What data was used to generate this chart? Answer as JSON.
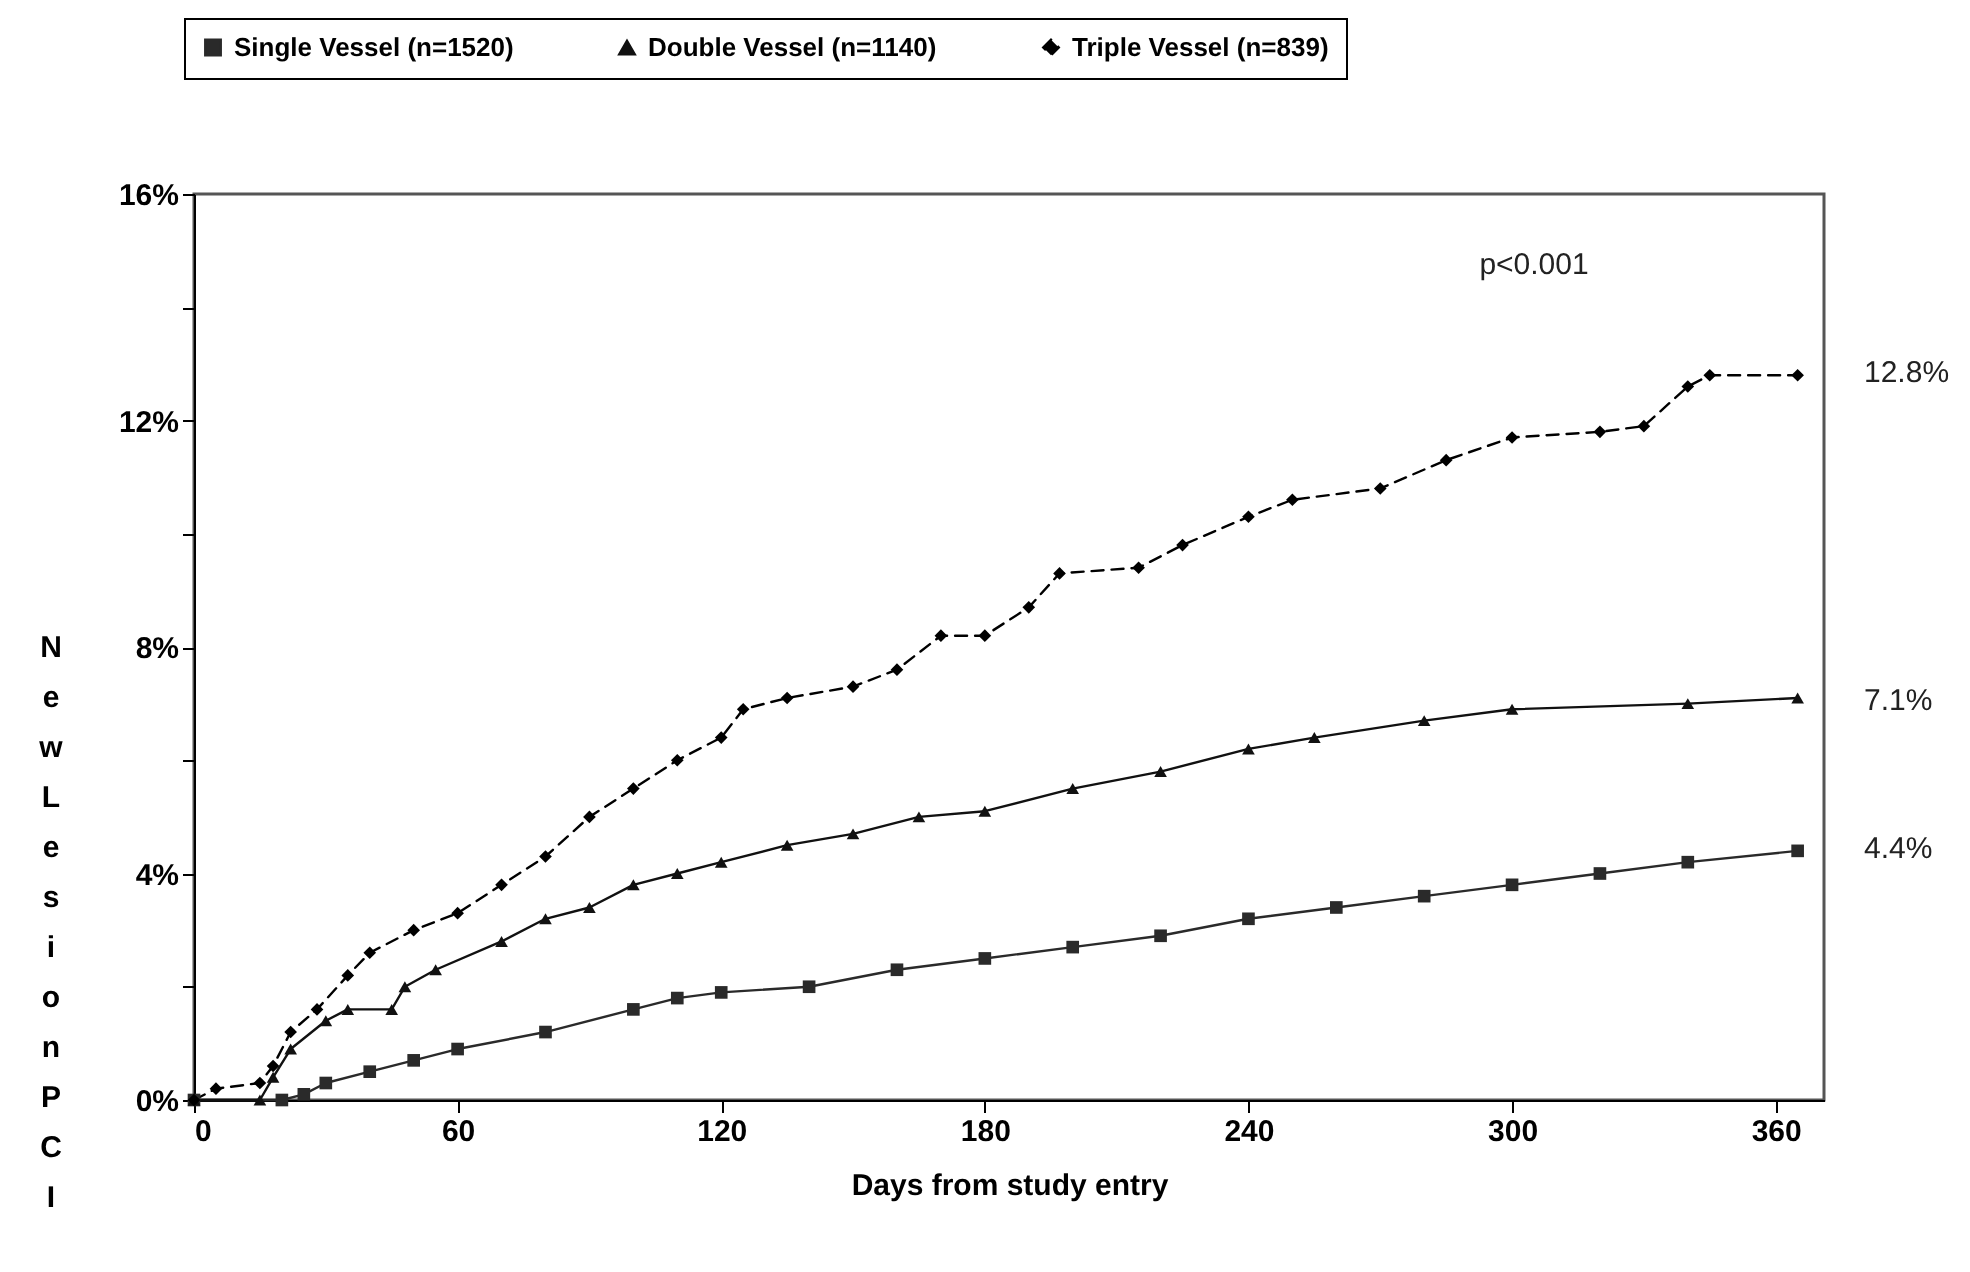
{
  "chart_data": {
    "type": "line",
    "xlabel": "Days from study entry",
    "ylabel": "New Lesion PCI",
    "xlim": [
      0,
      371
    ],
    "xticks": [
      0,
      60,
      120,
      180,
      240,
      300,
      360
    ],
    "ylim": [
      0,
      16
    ],
    "yticks": [
      {
        "value": 0,
        "label": "0%"
      },
      {
        "value": 2,
        "label": null
      },
      {
        "value": 4,
        "label": "4%"
      },
      {
        "value": 6,
        "label": null
      },
      {
        "value": 8,
        "label": "8%"
      },
      {
        "value": 10,
        "label": null
      },
      {
        "value": 12,
        "label": "12%"
      },
      {
        "value": 14,
        "label": null
      },
      {
        "value": 16,
        "label": "16%"
      }
    ],
    "legend": "top",
    "grid": false,
    "annotations": [
      "p<0.001",
      "12.8%",
      "7.1%",
      "4.4%"
    ],
    "series": [
      {
        "name": "Single Vessel (n=1520)",
        "color": "#2a2a2a",
        "marker": "square",
        "line_style": "solid",
        "x": [
          0,
          20,
          25,
          30,
          40,
          50,
          60,
          80,
          100,
          110,
          120,
          140,
          160,
          180,
          200,
          220,
          240,
          260,
          280,
          300,
          320,
          340,
          365
        ],
        "values": [
          0,
          0,
          0.1,
          0.3,
          0.5,
          0.7,
          0.9,
          1.2,
          1.6,
          1.8,
          1.9,
          2.0,
          2.3,
          2.5,
          2.7,
          2.9,
          3.2,
          3.4,
          3.6,
          3.8,
          4.0,
          4.2,
          4.4
        ]
      },
      {
        "name": "Double Vessel (n=1140)",
        "color": "#111111",
        "marker": "triangle",
        "line_style": "solid",
        "x": [
          0,
          15,
          18,
          22,
          30,
          35,
          45,
          48,
          55,
          70,
          80,
          90,
          100,
          110,
          120,
          135,
          150,
          165,
          180,
          200,
          220,
          240,
          255,
          280,
          300,
          340,
          365
        ],
        "values": [
          0,
          0,
          0.4,
          0.9,
          1.4,
          1.6,
          1.6,
          2.0,
          2.3,
          2.8,
          3.2,
          3.4,
          3.8,
          4.0,
          4.2,
          4.5,
          4.7,
          5.0,
          5.1,
          5.5,
          5.8,
          6.2,
          6.4,
          6.7,
          6.9,
          7.0,
          7.1
        ]
      },
      {
        "name": "Triple Vessel (n=839)",
        "color": "#000000",
        "marker": "diamond",
        "line_style": "dashed",
        "x": [
          0,
          5,
          15,
          18,
          22,
          28,
          35,
          40,
          50,
          60,
          70,
          80,
          90,
          100,
          110,
          120,
          125,
          135,
          150,
          160,
          170,
          180,
          190,
          197,
          215,
          225,
          240,
          250,
          270,
          285,
          300,
          320,
          330,
          340,
          345,
          365
        ],
        "values": [
          0,
          0.2,
          0.3,
          0.6,
          1.2,
          1.6,
          2.2,
          2.6,
          3.0,
          3.3,
          3.8,
          4.3,
          5.0,
          5.5,
          6.0,
          6.4,
          6.9,
          7.1,
          7.3,
          7.6,
          8.2,
          8.2,
          8.7,
          9.3,
          9.4,
          9.8,
          10.3,
          10.6,
          10.8,
          11.3,
          11.7,
          11.8,
          11.9,
          12.6,
          12.8,
          12.8
        ]
      }
    ]
  }
}
